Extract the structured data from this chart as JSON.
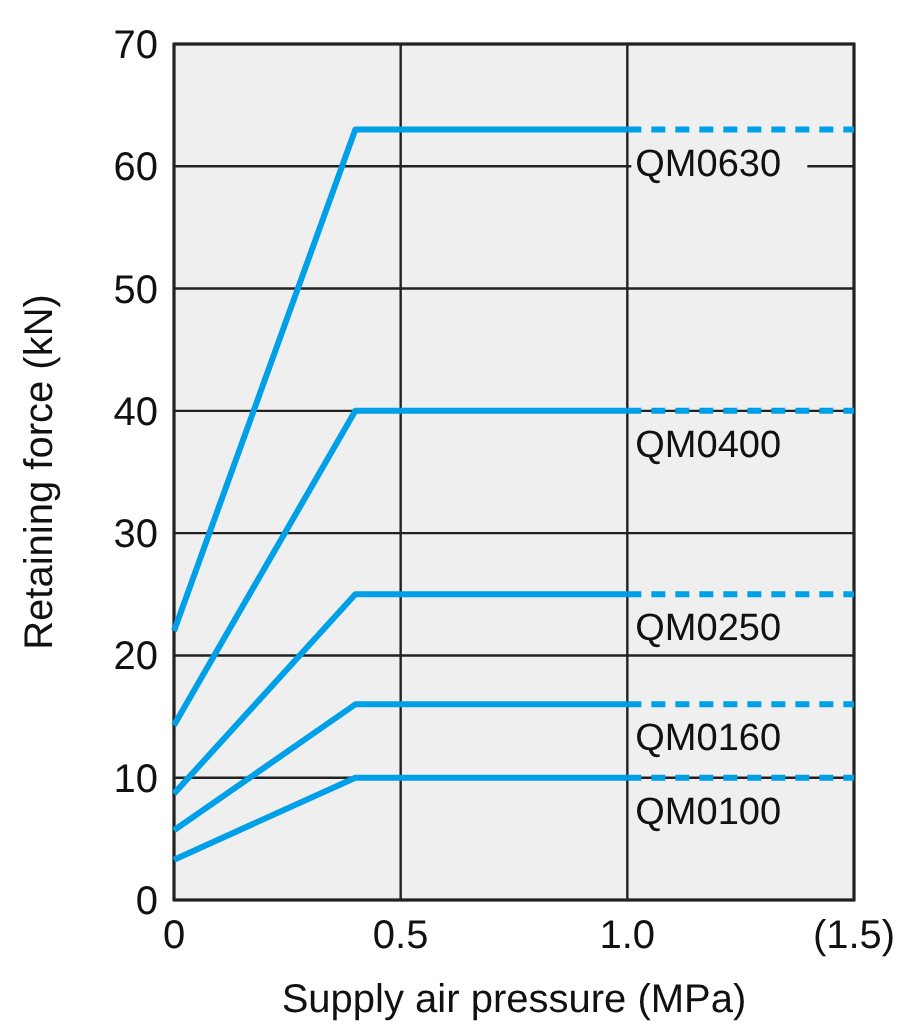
{
  "chart_data": {
    "type": "line",
    "xlabel": "Supply air pressure (MPa)",
    "ylabel": "Retaining force (kN)",
    "xlim": [
      0,
      1.5
    ],
    "xticks": [
      0,
      0.5,
      {
        "value": 1,
        "label": "1.0"
      },
      {
        "value": 1.5,
        "label": "(1.5)"
      }
    ],
    "ylim": [
      0,
      70
    ],
    "yticks": [
      0,
      10,
      20,
      30,
      40,
      50,
      60,
      70
    ],
    "grid": true,
    "line_style": "solid",
    "marker": "none",
    "series": [
      {
        "name": "QM0630",
        "color": "#00a0e9",
        "x": [
          0,
          0.4,
          1
        ],
        "values": [
          22,
          63,
          63
        ]
      },
      {
        "color": "#00a0e9",
        "x": [
          1,
          1.5
        ],
        "values": [
          63,
          63
        ],
        "line_style": "dashed"
      },
      {
        "name": "QM0400",
        "color": "#00a0e9",
        "x": [
          0,
          0.4,
          1
        ],
        "values": [
          14.3,
          40,
          40
        ]
      },
      {
        "color": "#00a0e9",
        "x": [
          1,
          1.5
        ],
        "values": [
          40,
          40
        ],
        "line_style": "dashed"
      },
      {
        "name": "QM0250",
        "color": "#00a0e9",
        "x": [
          0,
          0.4,
          1
        ],
        "values": [
          8.7,
          25,
          25
        ]
      },
      {
        "color": "#00a0e9",
        "x": [
          1,
          1.5
        ],
        "values": [
          25,
          25
        ],
        "line_style": "dashed"
      },
      {
        "name": "QM0160",
        "color": "#00a0e9",
        "x": [
          0,
          0.4,
          1
        ],
        "values": [
          5.7,
          16,
          16
        ]
      },
      {
        "color": "#00a0e9",
        "x": [
          1,
          1.5
        ],
        "values": [
          16,
          16
        ],
        "line_style": "dashed"
      },
      {
        "name": "QM0100",
        "color": "#00a0e9",
        "x": [
          0,
          0.4,
          1
        ],
        "values": [
          3.3,
          10,
          10
        ]
      },
      {
        "color": "#00a0e9",
        "x": [
          1,
          1.5
        ],
        "values": [
          10,
          10
        ],
        "line_style": "dashed"
      }
    ]
  }
}
